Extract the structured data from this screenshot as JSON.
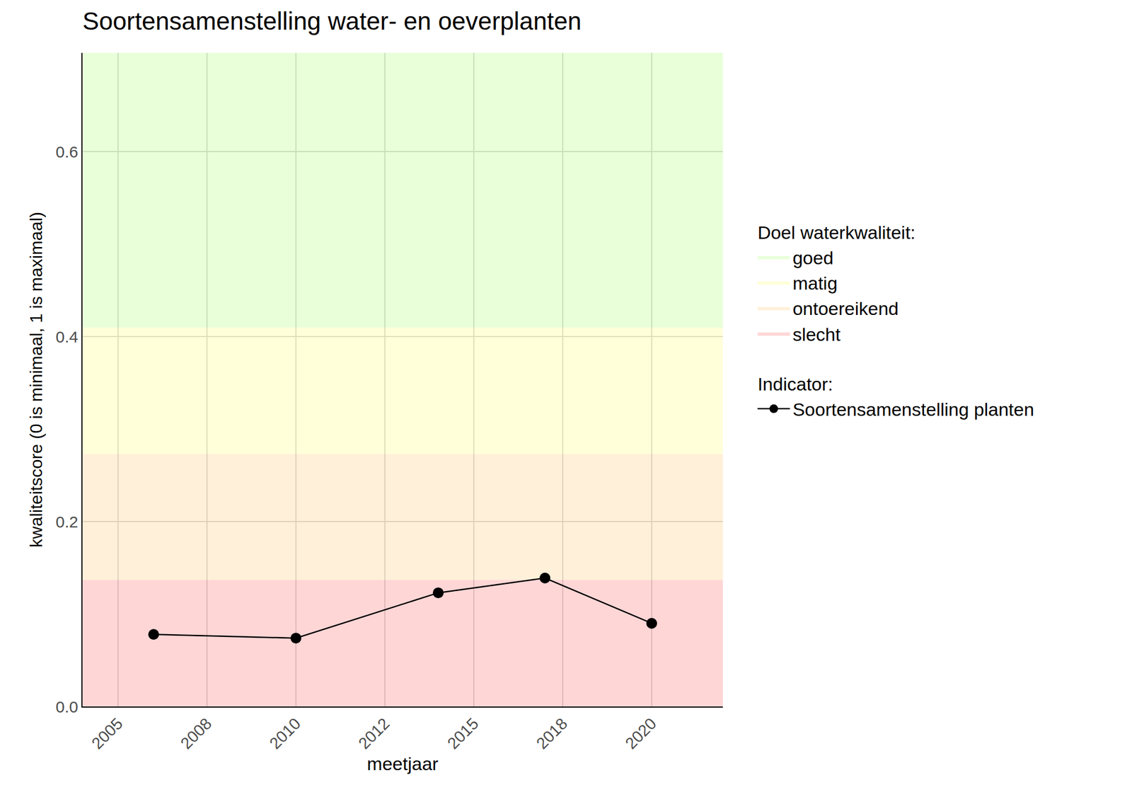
{
  "chart_data": {
    "type": "line",
    "title": "Soortensamenstelling water- en oeverplanten",
    "x_label": "meetjaar",
    "y_label": "kwaliteitscore (0 is minimaal, 1 is maximaal)",
    "x": [
      2006,
      2010,
      2014,
      2017,
      2020
    ],
    "series": [
      {
        "name": "Soortensamenstelling planten",
        "color": "#000000",
        "marker": "circle",
        "line_style": "solid",
        "values": [
          0.078,
          0.074,
          0.123,
          0.139,
          0.09
        ]
      }
    ],
    "series_legend_title": "Indicator:",
    "bands": {
      "title": "Doel waterkwaliteit:",
      "items": [
        {
          "name": "goed",
          "color": "rgba(102,255,0,0.15)",
          "range": [
            0.41,
            0.707
          ]
        },
        {
          "name": "matig",
          "color": "rgba(255,255,0,0.15)",
          "range": [
            0.273,
            0.41
          ]
        },
        {
          "name": "ontoereikend",
          "color": "rgba(255,155,0,0.15)",
          "range": [
            0.137,
            0.273
          ]
        },
        {
          "name": "slecht",
          "color": "rgba(255,0,0,0.16)",
          "range": [
            0,
            0.137
          ]
        }
      ]
    },
    "xlim": [
      2004,
      2022
    ],
    "ylim": [
      0,
      0.707
    ],
    "xticks": [
      2005,
      {
        "value": 2007.5,
        "label": "2008"
      },
      2010,
      {
        "value": 2012.5,
        "label": "2012"
      },
      2015,
      {
        "value": 2017.5,
        "label": "2018"
      },
      2020
    ],
    "yticks": [
      {
        "value": 0,
        "label": "0.0"
      },
      0.2,
      0.4,
      0.6
    ],
    "grid": true,
    "legend": "right"
  }
}
